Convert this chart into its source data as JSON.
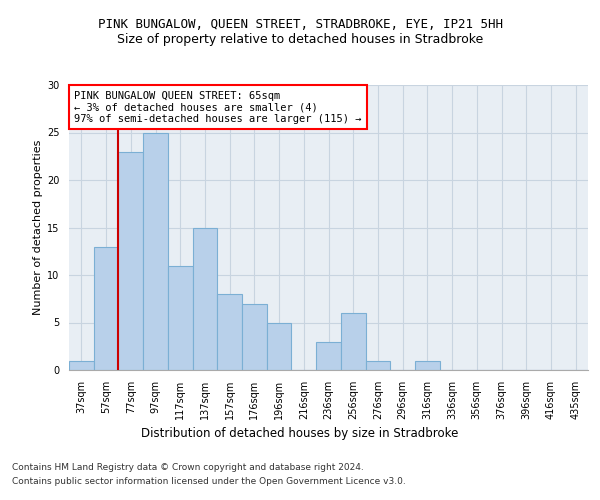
{
  "title": "PINK BUNGALOW, QUEEN STREET, STRADBROKE, EYE, IP21 5HH",
  "subtitle": "Size of property relative to detached houses in Stradbroke",
  "xlabel": "Distribution of detached houses by size in Stradbroke",
  "ylabel": "Number of detached properties",
  "categories": [
    "37sqm",
    "57sqm",
    "77sqm",
    "97sqm",
    "117sqm",
    "137sqm",
    "157sqm",
    "176sqm",
    "196sqm",
    "216sqm",
    "236sqm",
    "256sqm",
    "276sqm",
    "296sqm",
    "316sqm",
    "336sqm",
    "356sqm",
    "376sqm",
    "396sqm",
    "416sqm",
    "435sqm"
  ],
  "values": [
    1,
    13,
    23,
    25,
    11,
    15,
    8,
    7,
    5,
    0,
    3,
    6,
    1,
    0,
    1,
    0,
    0,
    0,
    0,
    0,
    0
  ],
  "bar_color": "#b8d0ea",
  "bar_edge_color": "#7bafd4",
  "grid_color": "#c8d4e0",
  "background_color": "#e8eef4",
  "annotation_line1": "PINK BUNGALOW QUEEN STREET: 65sqm",
  "annotation_line2": "← 3% of detached houses are smaller (4)",
  "annotation_line3": "97% of semi-detached houses are larger (115) →",
  "red_line_color": "#cc0000",
  "red_line_x": 1.5,
  "ylim": [
    0,
    30
  ],
  "yticks": [
    0,
    5,
    10,
    15,
    20,
    25,
    30
  ],
  "footer1": "Contains HM Land Registry data © Crown copyright and database right 2024.",
  "footer2": "Contains public sector information licensed under the Open Government Licence v3.0.",
  "title_fontsize": 9,
  "subtitle_fontsize": 9,
  "xlabel_fontsize": 8.5,
  "ylabel_fontsize": 8,
  "tick_fontsize": 7,
  "annotation_fontsize": 7.5,
  "footer_fontsize": 6.5
}
